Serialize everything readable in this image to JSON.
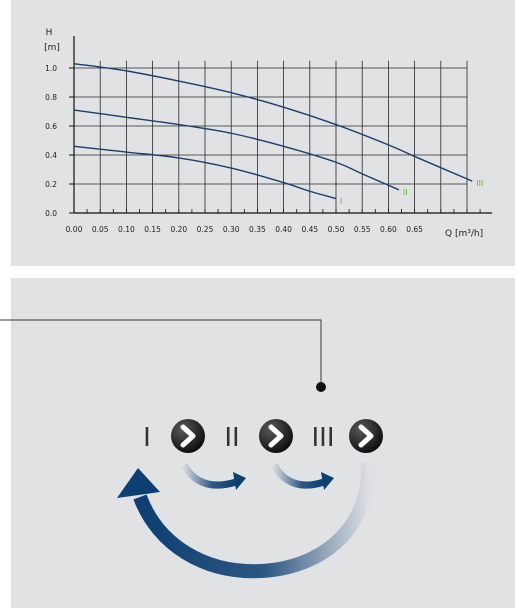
{
  "chart_data": {
    "type": "line",
    "title": "",
    "ylabel_top": "H",
    "ylabel_unit": "[m]",
    "xlabel": "Q [m³/h]",
    "xlim": [
      0,
      0.75
    ],
    "ylim": [
      0,
      1.1
    ],
    "x_ticks": [
      "0.00",
      "0.05",
      "0.10",
      "0.15",
      "0.20",
      "0.25",
      "0.30",
      "0.35",
      "0.40",
      "0.45",
      "0.50",
      "0.55",
      "0.60",
      "0.65"
    ],
    "y_ticks": [
      "0.0",
      "0.2",
      "0.4",
      "0.6",
      "0.8",
      "1.0"
    ],
    "grid": true,
    "series": [
      {
        "name": "I",
        "x": [
          0,
          0.1,
          0.2,
          0.3,
          0.4,
          0.45,
          0.5
        ],
        "y": [
          0.46,
          0.42,
          0.38,
          0.31,
          0.21,
          0.15,
          0.1
        ]
      },
      {
        "name": "II",
        "x": [
          0,
          0.1,
          0.2,
          0.3,
          0.4,
          0.5,
          0.55,
          0.62
        ],
        "y": [
          0.71,
          0.66,
          0.61,
          0.55,
          0.46,
          0.35,
          0.27,
          0.16
        ]
      },
      {
        "name": "III",
        "x": [
          0,
          0.1,
          0.2,
          0.3,
          0.4,
          0.5,
          0.6,
          0.65,
          0.76
        ],
        "y": [
          1.03,
          0.98,
          0.91,
          0.83,
          0.73,
          0.61,
          0.47,
          0.39,
          0.22
        ]
      }
    ],
    "series_label_color": "#5cb82e",
    "curve_color": "#1e3f6b"
  },
  "control": {
    "speed_labels": [
      "I",
      "II",
      "III"
    ],
    "button_icon": "chevron-right-icon",
    "arrow_icon": "curved-arrow-icon",
    "arrow_color": "#0d3f72"
  }
}
